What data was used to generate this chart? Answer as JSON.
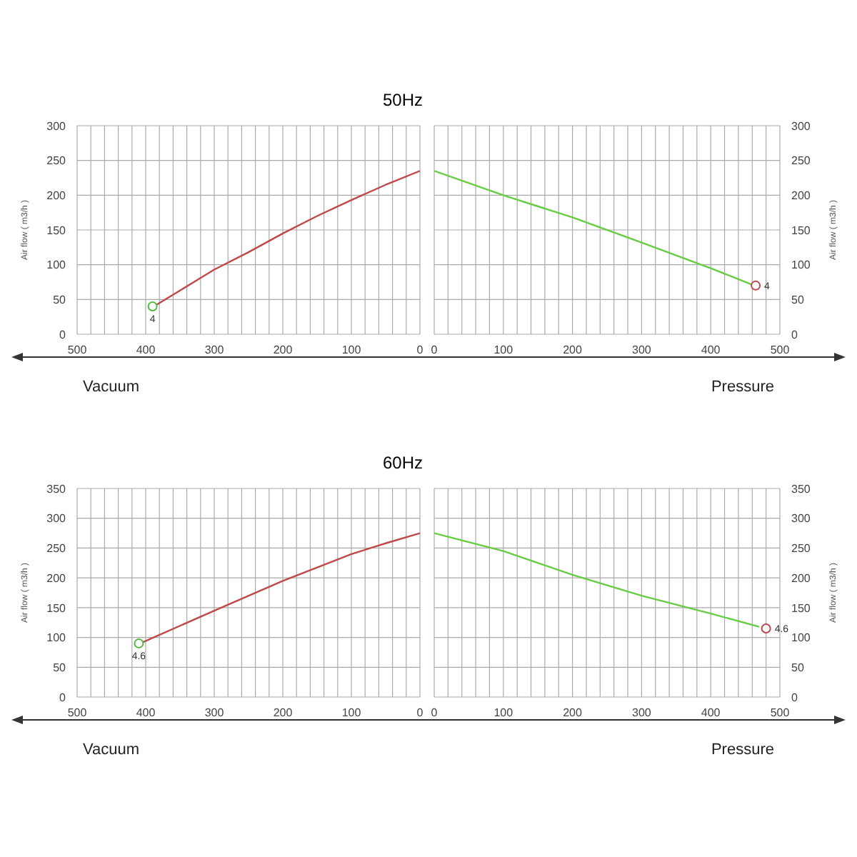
{
  "chart_data": [
    {
      "type": "line",
      "title": "50Hz",
      "xlabel": "Vacuum",
      "ylabel": "Air flow ( m3/h )",
      "xlim": [
        500,
        0
      ],
      "xticks": [
        500,
        {
          "value": 480,
          "label": null
        },
        {
          "value": 460,
          "label": null
        },
        {
          "value": 440,
          "label": null
        },
        {
          "value": 420,
          "label": null
        },
        400,
        {
          "value": 380,
          "label": null
        },
        {
          "value": 360,
          "label": null
        },
        {
          "value": 340,
          "label": null
        },
        {
          "value": 320,
          "label": null
        },
        300,
        {
          "value": 280,
          "label": null
        },
        {
          "value": 260,
          "label": null
        },
        {
          "value": 240,
          "label": null
        },
        {
          "value": 220,
          "label": null
        },
        200,
        {
          "value": 180,
          "label": null
        },
        {
          "value": 160,
          "label": null
        },
        {
          "value": 140,
          "label": null
        },
        {
          "value": 120,
          "label": null
        },
        100,
        {
          "value": 80,
          "label": null
        },
        {
          "value": 60,
          "label": null
        },
        {
          "value": 40,
          "label": null
        },
        {
          "value": 20,
          "label": null
        },
        0
      ],
      "ylim": [
        0,
        300
      ],
      "yticks": [
        0,
        50,
        100,
        150,
        200,
        250,
        300
      ],
      "grid": true,
      "series": [
        {
          "color": "#c04848",
          "x": [
            388,
            335,
            300,
            250,
            200,
            150,
            100,
            50,
            0
          ],
          "values": [
            40,
            72,
            93,
            118,
            145,
            170,
            193,
            215,
            235
          ]
        },
        {
          "type": "scatter",
          "color": "#55bb44",
          "x": [
            390
          ],
          "values": [
            40
          ]
        }
      ],
      "annotations": [
        {
          "text": "4",
          "x": 390,
          "y": 40
        }
      ]
    },
    {
      "type": "line",
      "ylabel": "Air flow ( m3/h )",
      "xlim": [
        0,
        500
      ],
      "xticks": [
        0,
        {
          "value": 20,
          "label": null
        },
        {
          "value": 40,
          "label": null
        },
        {
          "value": 60,
          "label": null
        },
        {
          "value": 80,
          "label": null
        },
        100,
        {
          "value": 120,
          "label": null
        },
        {
          "value": 140,
          "label": null
        },
        {
          "value": 160,
          "label": null
        },
        {
          "value": 180,
          "label": null
        },
        200,
        {
          "value": 220,
          "label": null
        },
        {
          "value": 240,
          "label": null
        },
        {
          "value": 260,
          "label": null
        },
        {
          "value": 280,
          "label": null
        },
        300,
        {
          "value": 320,
          "label": null
        },
        {
          "value": 340,
          "label": null
        },
        {
          "value": 360,
          "label": null
        },
        {
          "value": 380,
          "label": null
        },
        400,
        {
          "value": 420,
          "label": null
        },
        {
          "value": 440,
          "label": null
        },
        {
          "value": 460,
          "label": null
        },
        {
          "value": 480,
          "label": null
        },
        500
      ],
      "ylim": [
        0,
        300
      ],
      "yticks": [
        0,
        50,
        100,
        150,
        200,
        250,
        300
      ],
      "grid": true,
      "xlabel": "Pressure",
      "series": [
        {
          "color": "#66cc44",
          "x": [
            0,
            100,
            200,
            300,
            400,
            463
          ],
          "values": [
            235,
            200,
            168,
            132,
            95,
            70
          ]
        },
        {
          "type": "scatter",
          "color": "#c04848",
          "x": [
            465
          ],
          "values": [
            70
          ]
        }
      ],
      "annotations": [
        {
          "text": "4",
          "x": 465,
          "y": 70
        }
      ]
    },
    {
      "type": "line",
      "title": "60Hz",
      "xlabel": "Vacuum",
      "ylabel": "Air flow ( m3/h )",
      "xlim": [
        500,
        0
      ],
      "xticks": [
        500,
        {
          "value": 480,
          "label": null
        },
        {
          "value": 460,
          "label": null
        },
        {
          "value": 440,
          "label": null
        },
        {
          "value": 420,
          "label": null
        },
        400,
        {
          "value": 380,
          "label": null
        },
        {
          "value": 360,
          "label": null
        },
        {
          "value": 340,
          "label": null
        },
        {
          "value": 320,
          "label": null
        },
        300,
        {
          "value": 280,
          "label": null
        },
        {
          "value": 260,
          "label": null
        },
        {
          "value": 240,
          "label": null
        },
        {
          "value": 220,
          "label": null
        },
        200,
        {
          "value": 180,
          "label": null
        },
        {
          "value": 160,
          "label": null
        },
        {
          "value": 140,
          "label": null
        },
        {
          "value": 120,
          "label": null
        },
        100,
        {
          "value": 80,
          "label": null
        },
        {
          "value": 60,
          "label": null
        },
        {
          "value": 40,
          "label": null
        },
        {
          "value": 20,
          "label": null
        },
        0
      ],
      "ylim": [
        0,
        350
      ],
      "yticks": [
        0,
        50,
        100,
        150,
        200,
        250,
        300,
        350
      ],
      "grid": true,
      "series": [
        {
          "color": "#c04848",
          "x": [
            408,
            300,
            200,
            100,
            50,
            0
          ],
          "values": [
            90,
            145,
            195,
            240,
            258,
            275
          ]
        },
        {
          "type": "scatter",
          "color": "#55bb44",
          "x": [
            410
          ],
          "values": [
            90
          ]
        }
      ],
      "annotations": [
        {
          "text": "4.6",
          "x": 410,
          "y": 90
        }
      ]
    },
    {
      "type": "line",
      "ylabel": "Air flow ( m3/h )",
      "xlim": [
        0,
        500
      ],
      "xticks": [
        0,
        {
          "value": 20,
          "label": null
        },
        {
          "value": 40,
          "label": null
        },
        {
          "value": 60,
          "label": null
        },
        {
          "value": 80,
          "label": null
        },
        100,
        {
          "value": 120,
          "label": null
        },
        {
          "value": 140,
          "label": null
        },
        {
          "value": 160,
          "label": null
        },
        {
          "value": 180,
          "label": null
        },
        200,
        {
          "value": 220,
          "label": null
        },
        {
          "value": 240,
          "label": null
        },
        {
          "value": 260,
          "label": null
        },
        {
          "value": 280,
          "label": null
        },
        300,
        {
          "value": 320,
          "label": null
        },
        {
          "value": 340,
          "label": null
        },
        {
          "value": 360,
          "label": null
        },
        {
          "value": 380,
          "label": null
        },
        400,
        {
          "value": 420,
          "label": null
        },
        {
          "value": 440,
          "label": null
        },
        {
          "value": 460,
          "label": null
        },
        {
          "value": 480,
          "label": null
        },
        500
      ],
      "ylim": [
        0,
        350
      ],
      "yticks": [
        0,
        50,
        100,
        150,
        200,
        250,
        300,
        350
      ],
      "grid": true,
      "xlabel": "Pressure",
      "series": [
        {
          "color": "#66cc44",
          "x": [
            0,
            100,
            200,
            300,
            400,
            470
          ],
          "values": [
            275,
            245,
            205,
            170,
            140,
            118
          ]
        },
        {
          "type": "scatter",
          "color": "#c04848",
          "x": [
            480
          ],
          "values": [
            115
          ]
        }
      ],
      "annotations": [
        {
          "text": "4.6",
          "x": 480,
          "y": 115
        }
      ]
    }
  ]
}
